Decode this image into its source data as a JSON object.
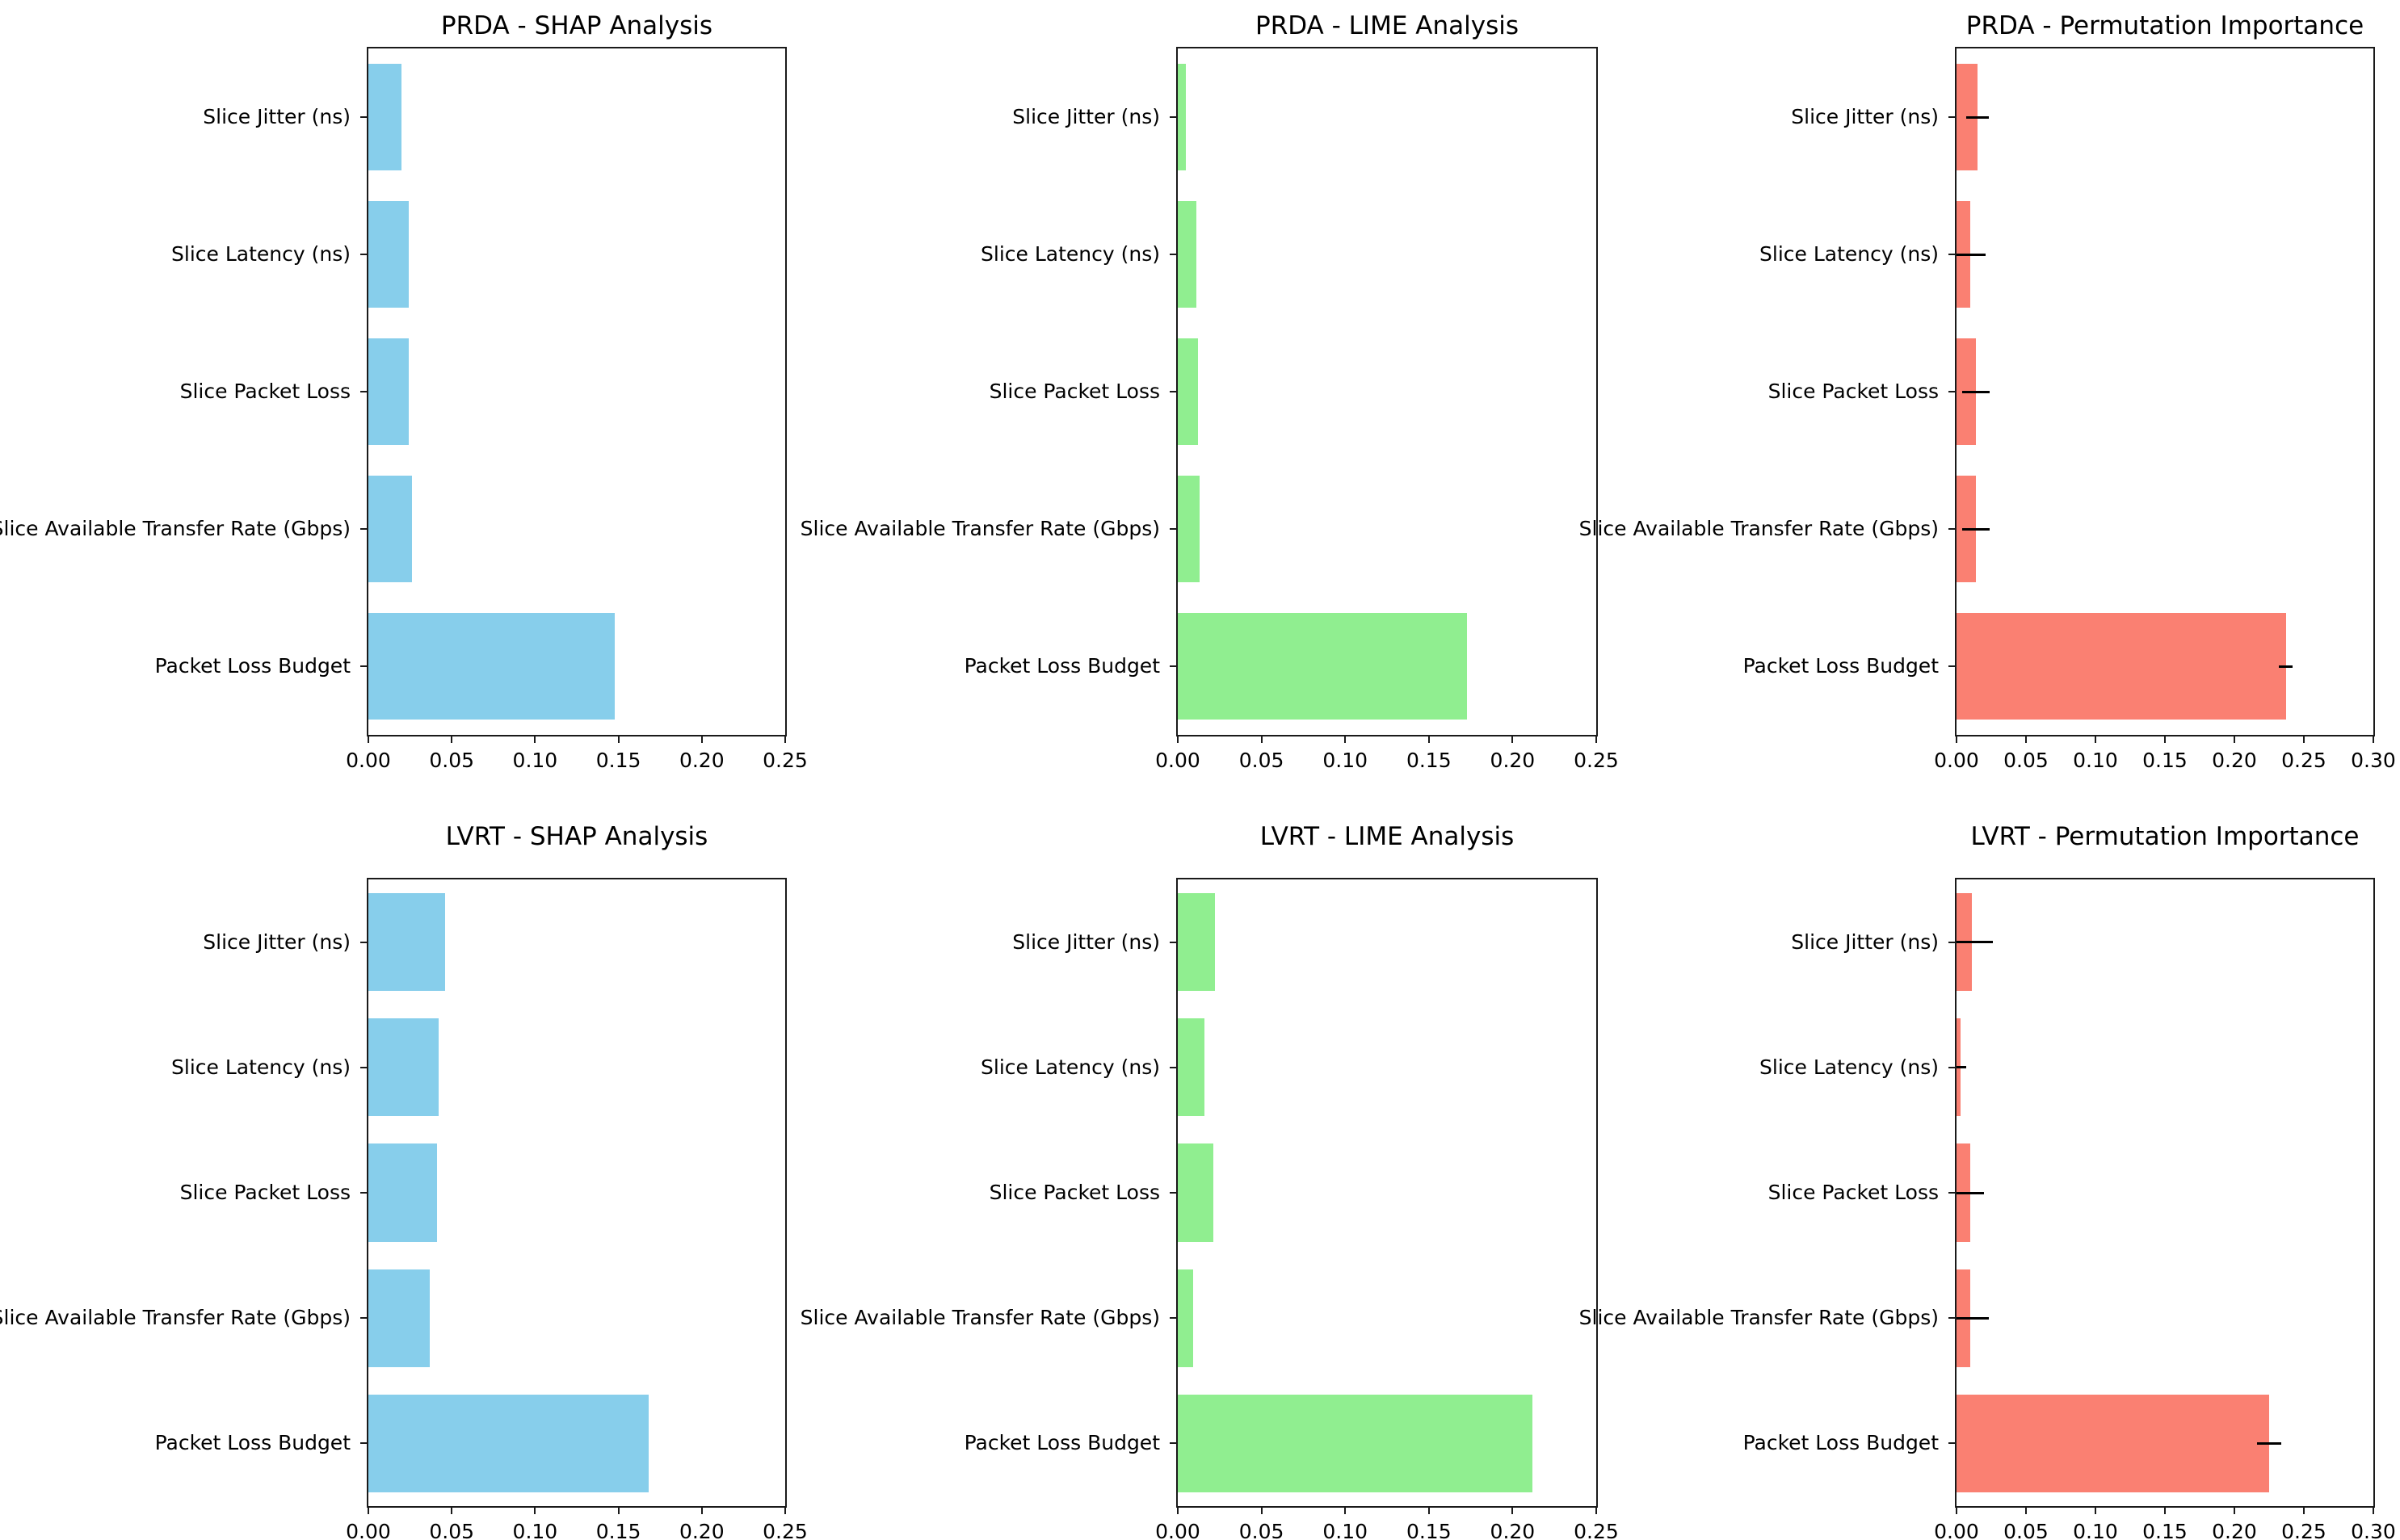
{
  "figure": {
    "background_color": "#FFFFFF",
    "text_color": "#000000",
    "error_bar_color": "#000000",
    "grid_layout": "2 rows x 3 columns"
  },
  "chart_data": [
    {
      "type": "bar",
      "orientation": "horizontal",
      "title": "PRDA - SHAP Analysis",
      "categories": [
        "Slice Jitter (ns)",
        "Slice Latency (ns)",
        "Slice Packet Loss",
        "Slice Available Transfer Rate (Gbps)",
        "Packet Loss Budget"
      ],
      "values": [
        0.02,
        0.024,
        0.024,
        0.026,
        0.148
      ],
      "bar_color": "#87CEEB",
      "xlim": [
        0,
        0.25
      ],
      "xticks": [
        0,
        0.05,
        0.1,
        0.15,
        0.2,
        0.25
      ],
      "grid": false,
      "legend": null
    },
    {
      "type": "bar",
      "orientation": "horizontal",
      "title": "PRDA - LIME Analysis",
      "categories": [
        "Slice Jitter (ns)",
        "Slice Latency (ns)",
        "Slice Packet Loss",
        "Slice Available Transfer Rate (Gbps)",
        "Packet Loss Budget"
      ],
      "values": [
        0.005,
        0.011,
        0.012,
        0.013,
        0.173
      ],
      "bar_color": "#90EE90",
      "xlim": [
        0,
        0.25
      ],
      "xticks": [
        0,
        0.05,
        0.1,
        0.15,
        0.2,
        0.25
      ],
      "grid": false,
      "legend": null
    },
    {
      "type": "bar",
      "orientation": "horizontal",
      "title": "PRDA - Permutation Importance",
      "categories": [
        "Slice Jitter (ns)",
        "Slice Latency (ns)",
        "Slice Packet Loss",
        "Slice Available Transfer Rate (Gbps)",
        "Packet Loss Budget"
      ],
      "values": [
        0.015,
        0.01,
        0.014,
        0.014,
        0.237
      ],
      "xerr": [
        0.008,
        0.011,
        0.01,
        0.01,
        0.005
      ],
      "bar_color": "#FA8072",
      "xlim": [
        0,
        0.3
      ],
      "xticks": [
        0,
        0.05,
        0.1,
        0.15,
        0.2,
        0.25,
        0.3
      ],
      "grid": false,
      "legend": null
    },
    {
      "type": "bar",
      "orientation": "horizontal",
      "title": "LVRT - SHAP Analysis",
      "categories": [
        "Slice Jitter (ns)",
        "Slice Latency (ns)",
        "Slice Packet Loss",
        "Slice Available Transfer Rate (Gbps)",
        "Packet Loss Budget"
      ],
      "values": [
        0.046,
        0.042,
        0.041,
        0.037,
        0.168
      ],
      "bar_color": "#87CEEB",
      "xlim": [
        0,
        0.25
      ],
      "xticks": [
        0,
        0.05,
        0.1,
        0.15,
        0.2,
        0.25
      ],
      "grid": false,
      "legend": null
    },
    {
      "type": "bar",
      "orientation": "horizontal",
      "title": "LVRT - LIME Analysis",
      "categories": [
        "Slice Jitter (ns)",
        "Slice Latency (ns)",
        "Slice Packet Loss",
        "Slice Available Transfer Rate (Gbps)",
        "Packet Loss Budget"
      ],
      "values": [
        0.022,
        0.016,
        0.021,
        0.009,
        0.212
      ],
      "bar_color": "#90EE90",
      "xlim": [
        0,
        0.25
      ],
      "xticks": [
        0,
        0.05,
        0.1,
        0.15,
        0.2,
        0.25
      ],
      "grid": false,
      "legend": null
    },
    {
      "type": "bar",
      "orientation": "horizontal",
      "title": "LVRT - Permutation Importance",
      "categories": [
        "Slice Jitter (ns)",
        "Slice Latency (ns)",
        "Slice Packet Loss",
        "Slice Available Transfer Rate (Gbps)",
        "Packet Loss Budget"
      ],
      "values": [
        0.011,
        0.003,
        0.01,
        0.01,
        0.225
      ],
      "xerr": [
        0.015,
        0.004,
        0.01,
        0.013,
        0.009
      ],
      "bar_color": "#FA8072",
      "xlim": [
        0,
        0.3
      ],
      "xticks": [
        0,
        0.05,
        0.1,
        0.15,
        0.2,
        0.25,
        0.3
      ],
      "grid": false,
      "legend": null
    }
  ]
}
